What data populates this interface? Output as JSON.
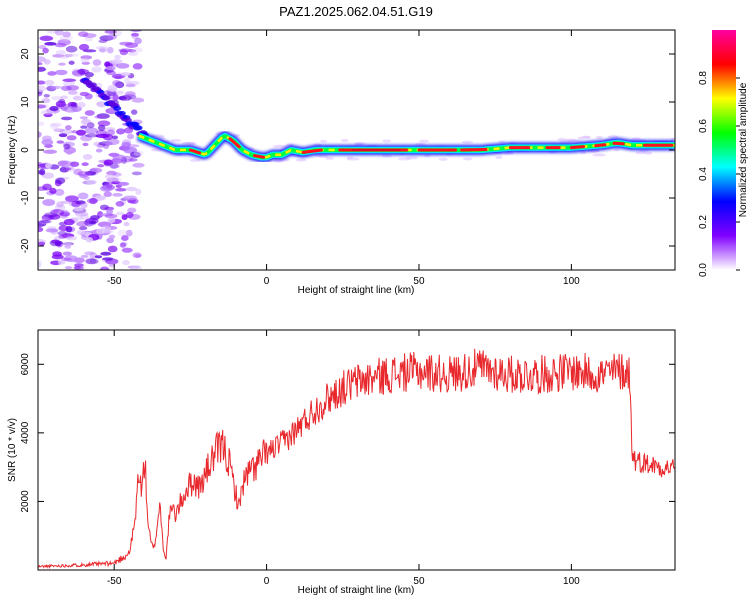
{
  "title": "PAZ1.2025.062.04.51.G19",
  "colorbar": {
    "label": "Normalized spectral amplitude",
    "ticks": [
      "0.0",
      "0.2",
      "0.4",
      "0.6",
      "0.8"
    ],
    "stops": [
      "#ffffff",
      "#8000ff",
      "#0000ff",
      "#00ffff",
      "#00ff00",
      "#ffff00",
      "#ff0000",
      "#ff00a0"
    ]
  },
  "chart_data": [
    {
      "type": "heatmap",
      "xlabel": "Height of straight line (km)",
      "ylabel": "Frequency (Hz)",
      "xlim": [
        -75,
        134
      ],
      "ylim": [
        -25,
        25
      ],
      "xticks": [
        -50,
        0,
        50,
        100
      ],
      "yticks": [
        -20,
        -10,
        0,
        10,
        20
      ],
      "ridge": {
        "x": [
          -42,
          -38,
          -34,
          -30,
          -25,
          -20,
          -17,
          -14,
          -11,
          -8,
          -5,
          -2,
          0,
          2,
          5,
          8,
          12,
          16,
          20,
          25,
          30,
          40,
          50,
          60,
          70,
          80,
          90,
          100,
          110,
          115,
          120,
          134
        ],
        "freq": [
          3,
          2,
          1,
          0,
          0,
          -1,
          1,
          3,
          2,
          0,
          -1,
          -1.5,
          -1.5,
          -1,
          -1,
          0,
          -0.5,
          0,
          0,
          0,
          0,
          0,
          0,
          0,
          0,
          0.5,
          0.5,
          0.5,
          1,
          1.5,
          1,
          1
        ]
      },
      "diagonal": {
        "x": [
          -60,
          -40
        ],
        "freq": [
          15,
          3
        ]
      },
      "noise_region_x": [
        -75,
        -42
      ]
    },
    {
      "type": "line",
      "xlabel": "Height of straight line (km)",
      "ylabel": "SNR (10 * v/v)",
      "xlim": [
        -75,
        134
      ],
      "ylim": [
        0,
        7000
      ],
      "xticks": [
        -50,
        0,
        50,
        100
      ],
      "yticks": [
        2000,
        4000,
        6000
      ],
      "color": "#e8282c",
      "x": [
        -75,
        -60,
        -50,
        -45,
        -43,
        -42,
        -41,
        -40,
        -39,
        -38,
        -37,
        -36,
        -35,
        -34,
        -33,
        -32,
        -31,
        -30,
        -28,
        -26,
        -24,
        -22,
        -20,
        -18,
        -16,
        -14,
        -12,
        -10,
        -9,
        -8,
        -6,
        -4,
        -2,
        0,
        5,
        10,
        15,
        20,
        25,
        30,
        35,
        40,
        50,
        60,
        70,
        80,
        90,
        100,
        110,
        115,
        119,
        120,
        121,
        125,
        130,
        134
      ],
      "y": [
        100,
        150,
        200,
        500,
        1500,
        3000,
        2200,
        3300,
        1500,
        800,
        600,
        1200,
        2000,
        700,
        300,
        1500,
        1800,
        1600,
        2000,
        2400,
        2600,
        2400,
        2800,
        3200,
        3500,
        3600,
        3000,
        2200,
        1800,
        2500,
        2800,
        3000,
        3200,
        3400,
        3700,
        4100,
        4600,
        5000,
        5300,
        5500,
        5600,
        5700,
        5800,
        5700,
        5900,
        5700,
        5700,
        5800,
        5700,
        5800,
        5800,
        3400,
        3200,
        3100,
        3000,
        3000
      ]
    }
  ]
}
